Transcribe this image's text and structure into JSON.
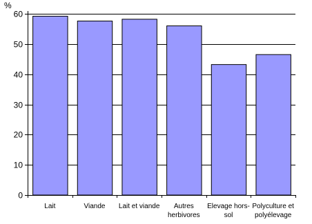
{
  "chart_data": {
    "type": "bar",
    "ylabel": "%",
    "ylim": [
      0,
      60
    ],
    "yticks": [
      0,
      10,
      20,
      30,
      40,
      50,
      60
    ],
    "grid": true,
    "categories": [
      [
        "Lait"
      ],
      [
        "Viande"
      ],
      [
        "Lait et viande"
      ],
      [
        "Autres",
        "herbivores"
      ],
      [
        "Elevage hors-",
        "sol"
      ],
      [
        "Polyculture et",
        "polyélevage"
      ]
    ],
    "values": [
      59.2,
      57.6,
      58.2,
      56.0,
      43.2,
      46.5
    ],
    "colors": {
      "bar_fill": "#9999ff",
      "bar_stroke": "#000000",
      "grid": "#000000",
      "axis": "#000000"
    }
  }
}
